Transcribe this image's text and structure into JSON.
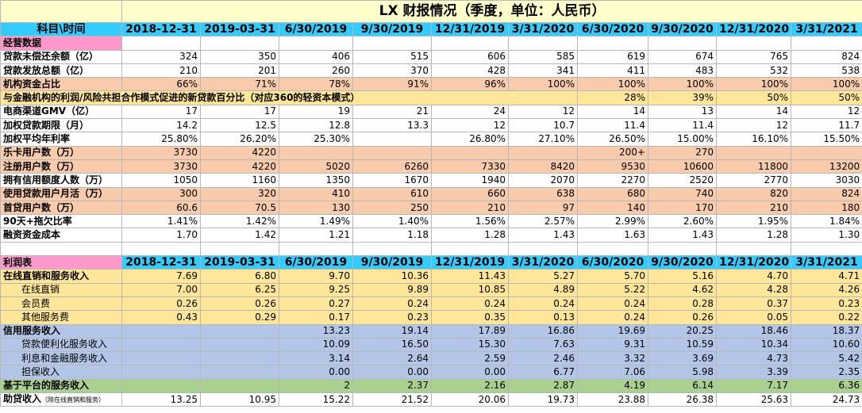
{
  "title": "LX 财报情况（季度，单位：人民币）",
  "header_corner": "科目\\时间",
  "periods": [
    "2018-12-31",
    "2019-03-31",
    "6/30/2019",
    "9/30/2019",
    "12/31/2019",
    "3/31/2020",
    "6/30/2020",
    "9/30/2020",
    "12/31/2020",
    "3/31/2021"
  ],
  "section1_title": "经营数据",
  "section2_title": "利润表",
  "section1_rows": [
    {
      "label": "贷款未偿还余额（亿）",
      "values": [
        "324",
        "350",
        "406",
        "515",
        "606",
        "585",
        "619",
        "674",
        "765",
        "824"
      ]
    },
    {
      "label": "贷款发放总额（亿）",
      "values": [
        "210",
        "201",
        "260",
        "370",
        "428",
        "341",
        "411",
        "483",
        "532",
        "538"
      ]
    },
    {
      "label": "机构资金占比",
      "values": [
        "66%",
        "71%",
        "78%",
        "91%",
        "96%",
        "100%",
        "100%",
        "100%",
        "100%",
        "100%"
      ]
    },
    {
      "label": "与金融机构的利润/风险共担合作模式促进的新贷款百分比（对应360的轻资本模式）",
      "values": [
        "",
        "",
        "",
        "",
        "",
        "",
        "28%",
        "39%",
        "50%",
        "50%"
      ]
    },
    {
      "label": "电商渠道GMV（亿）",
      "values": [
        "17",
        "17",
        "19",
        "21",
        "24",
        "12",
        "14",
        "13",
        "14",
        "12"
      ]
    },
    {
      "label": "加权贷款期限（月）",
      "values": [
        "14.2",
        "12.5",
        "12.8",
        "13.3",
        "12",
        "10.7",
        "11.4",
        "11.4",
        "12",
        "11.7"
      ]
    },
    {
      "label": "加权平均年利率",
      "values": [
        "25.80%",
        "26.20%",
        "25.30%",
        "",
        "26.80%",
        "27.10%",
        "26.50%",
        "15.00%",
        "16.10%",
        "15.50%"
      ]
    },
    {
      "label": "乐卡用户数（万）",
      "values": [
        "3730",
        "4220",
        "",
        "",
        "",
        "",
        "200+",
        "270",
        "",
        ""
      ]
    },
    {
      "label": "注册用户数（万）",
      "values": [
        "3730",
        "4220",
        "5020",
        "6260",
        "7330",
        "8420",
        "9530",
        "10600",
        "11800",
        "13200"
      ]
    },
    {
      "label": "拥有信用额度人数（万）",
      "values": [
        "1050",
        "1160",
        "1350",
        "1670",
        "1940",
        "2070",
        "2270",
        "2520",
        "2770",
        "3030"
      ]
    },
    {
      "label": "使用贷款用户月活（万）",
      "values": [
        "300",
        "320",
        "410",
        "610",
        "660",
        "638",
        "680",
        "740",
        "820",
        "824"
      ]
    },
    {
      "label": "首贷用户数（万）",
      "values": [
        "60.6",
        "70.5",
        "130",
        "250",
        "210",
        "97",
        "140",
        "170",
        "210",
        "180"
      ]
    },
    {
      "label": "90天+拖欠比率",
      "values": [
        "1.41%",
        "1.42%",
        "1.49%",
        "1.40%",
        "1.56%",
        "2.57%",
        "2.99%",
        "2.60%",
        "1.95%",
        "1.84%"
      ]
    },
    {
      "label": "融资资金成本",
      "values": [
        "1.70",
        "1.42",
        "1.21",
        "1.18",
        "1.28",
        "1.43",
        "1.63",
        "1.43",
        "1.28",
        "1.30"
      ]
    }
  ],
  "section2_rows": [
    {
      "label": "在线直销和服务收入",
      "values": [
        "7.69",
        "6.80",
        "9.70",
        "10.36",
        "11.43",
        "5.27",
        "5.70",
        "5.16",
        "4.70",
        "4.71"
      ]
    },
    {
      "label": "在线直销",
      "values": [
        "7.00",
        "6.25",
        "9.25",
        "9.89",
        "10.85",
        "4.89",
        "5.22",
        "4.62",
        "4.28",
        "4.26"
      ]
    },
    {
      "label": "会员费",
      "values": [
        "0.26",
        "0.26",
        "0.27",
        "0.24",
        "0.24",
        "0.24",
        "0.24",
        "0.28",
        "0.37",
        "0.23"
      ]
    },
    {
      "label": "其他服务费",
      "values": [
        "0.43",
        "0.29",
        "0.17",
        "0.23",
        "0.35",
        "0.13",
        "0.24",
        "0.26",
        "0.05",
        "0.22"
      ]
    },
    {
      "label": "信用服务收入",
      "values": [
        "",
        "",
        "13.23",
        "19.14",
        "17.89",
        "16.86",
        "19.69",
        "20.25",
        "18.46",
        "18.37"
      ]
    },
    {
      "label": "贷款便利化服务收入",
      "values": [
        "",
        "",
        "10.09",
        "16.50",
        "15.30",
        "7.63",
        "9.31",
        "10.59",
        "10.34",
        "10.60"
      ]
    },
    {
      "label": "利息和金融服务收入",
      "values": [
        "",
        "",
        "3.14",
        "2.64",
        "2.59",
        "2.46",
        "3.32",
        "3.69",
        "4.73",
        "5.42"
      ]
    },
    {
      "label": "担保收入",
      "values": [
        "",
        "",
        "0.00",
        "0.00",
        "0.00",
        "6.77",
        "7.06",
        "5.98",
        "3.39",
        "2.35"
      ]
    },
    {
      "label": "基于平台的服务收入",
      "values": [
        "",
        "",
        "2",
        "2.37",
        "2.16",
        "2.87",
        "4.19",
        "6.14",
        "7.17",
        "6.36"
      ]
    },
    {
      "label": "助贷收入",
      "label_note": "（除在线直销和服务）",
      "values": [
        "13.25",
        "10.95",
        "15.22",
        "21.52",
        "20.06",
        "19.73",
        "23.88",
        "26.38",
        "25.63",
        "24.73"
      ]
    }
  ],
  "colors": {
    "header": "#33ccff",
    "title_bg": "#ffffcc",
    "section": "#ff99cc",
    "orange": "#f8cbad",
    "yellow": "#ffe699",
    "blue": "#b4c6e7",
    "green": "#a9d08e"
  }
}
